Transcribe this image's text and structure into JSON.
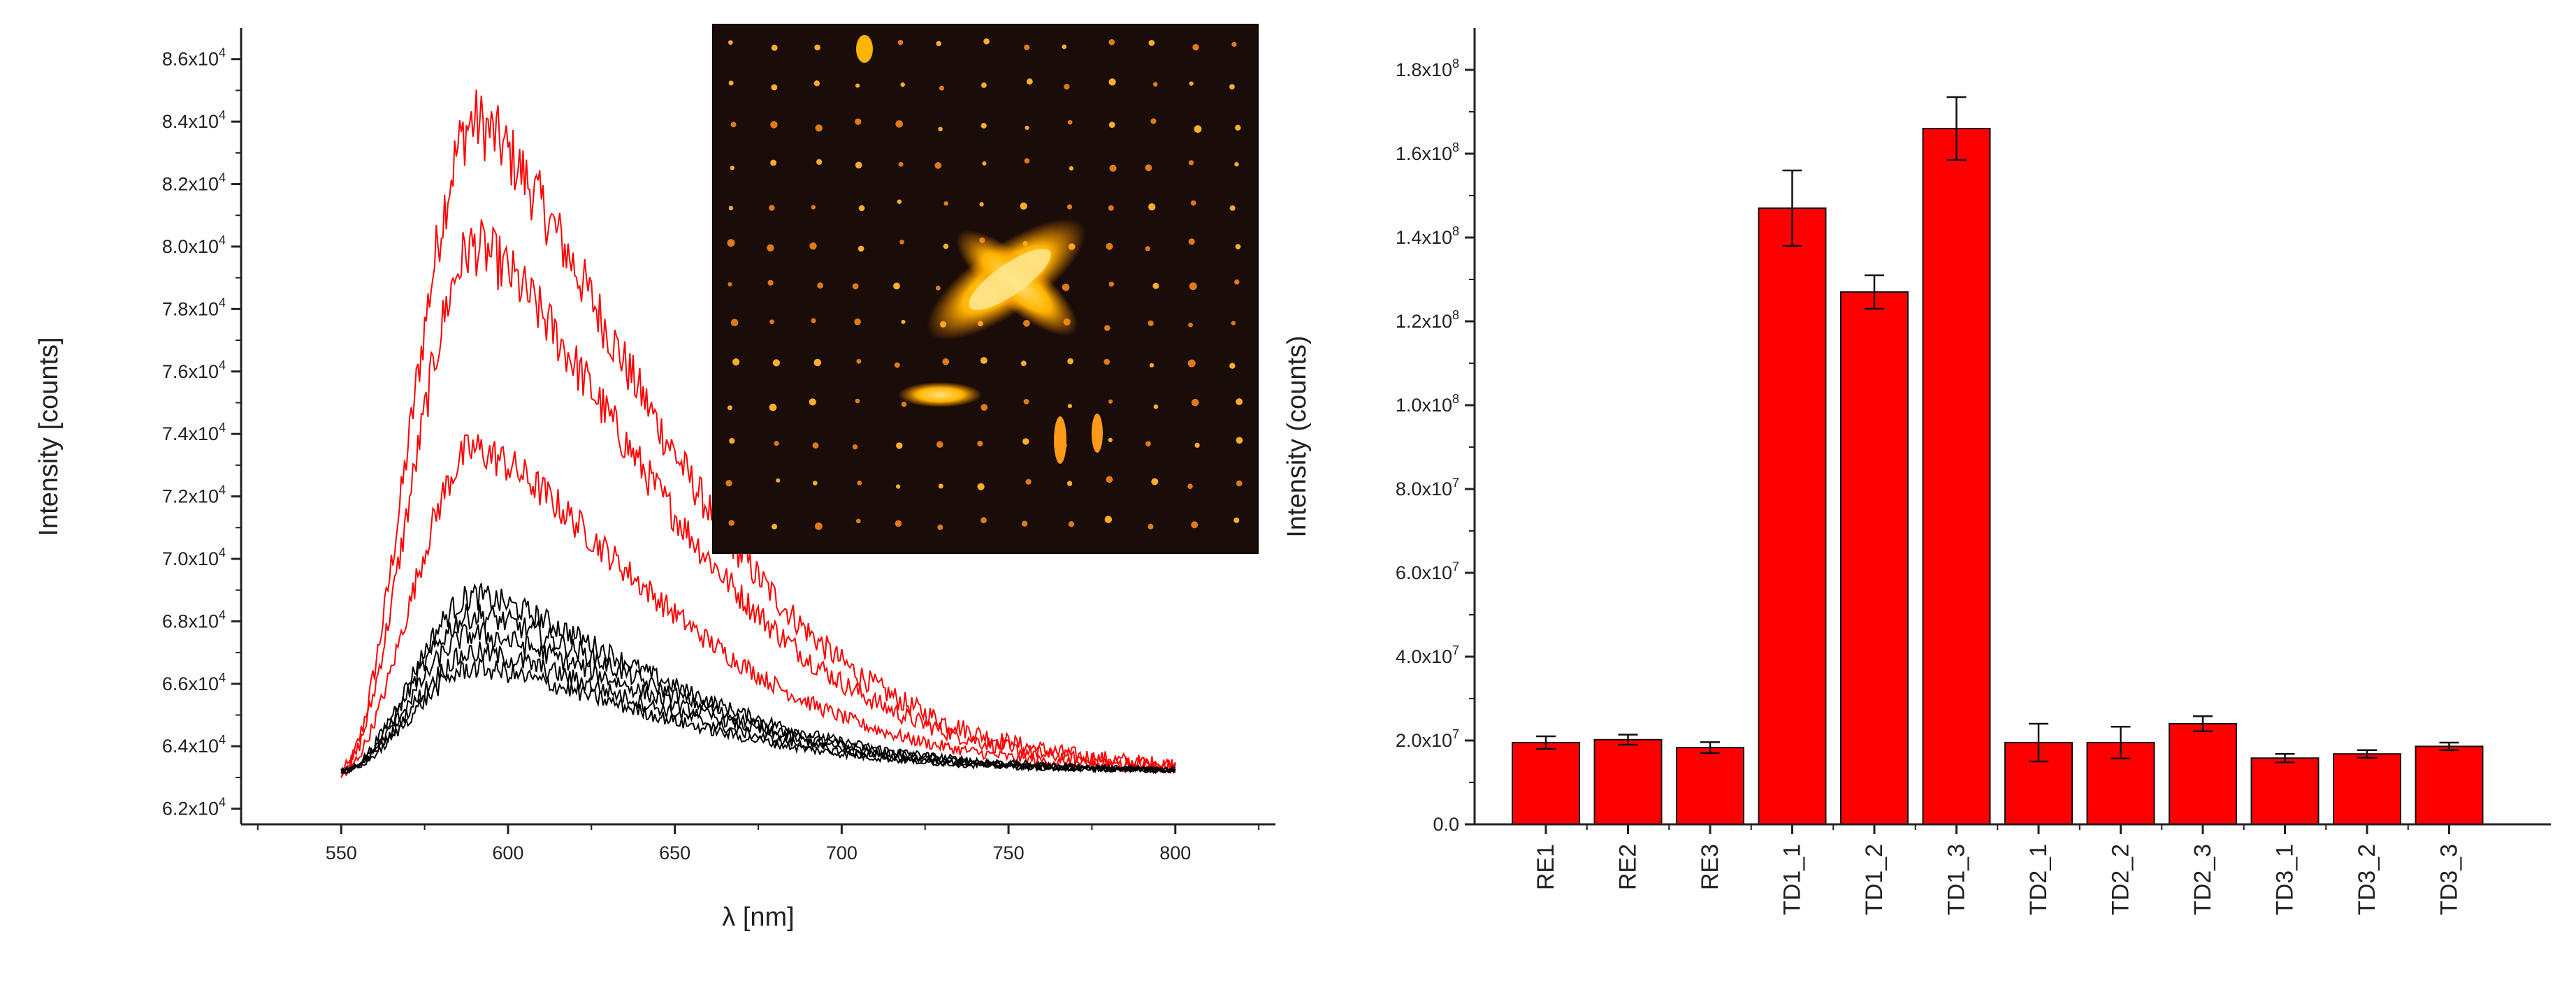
{
  "chart_data": [
    {
      "type": "line",
      "title": "",
      "xlabel": "λ [nm]",
      "ylabel": "Intensity [counts]",
      "xlim": [
        520,
        830
      ],
      "ylim": [
        61500,
        87000
      ],
      "x_ticks": [
        "550",
        "600",
        "650",
        "700",
        "750",
        "800"
      ],
      "y_ticks": [
        {
          "value": 62000,
          "mantissa": "6.2",
          "exponent": "4"
        },
        {
          "value": 64000,
          "mantissa": "6.4",
          "exponent": "4"
        },
        {
          "value": 66000,
          "mantissa": "6.6",
          "exponent": "4"
        },
        {
          "value": 68000,
          "mantissa": "6.8",
          "exponent": "4"
        },
        {
          "value": 70000,
          "mantissa": "7.0",
          "exponent": "4"
        },
        {
          "value": 72000,
          "mantissa": "7.2",
          "exponent": "4"
        },
        {
          "value": 74000,
          "mantissa": "7.4",
          "exponent": "4"
        },
        {
          "value": 76000,
          "mantissa": "7.6",
          "exponent": "4"
        },
        {
          "value": 78000,
          "mantissa": "7.8",
          "exponent": "4"
        },
        {
          "value": 80000,
          "mantissa": "8.0",
          "exponent": "4"
        },
        {
          "value": 82000,
          "mantissa": "8.2",
          "exponent": "4"
        },
        {
          "value": 84000,
          "mantissa": "8.4",
          "exponent": "4"
        },
        {
          "value": 86000,
          "mantissa": "8.6",
          "exponent": "4"
        }
      ],
      "grid": false,
      "legend": "none",
      "baseline": 63200,
      "x_range": [
        550,
        800
      ],
      "series": [
        {
          "color": "#ff0000",
          "peak_x": 590,
          "peak_y": 84000
        },
        {
          "color": "#ff0000",
          "peak_x": 590,
          "peak_y": 80000
        },
        {
          "color": "#ff0000",
          "peak_x": 590,
          "peak_y": 73500
        },
        {
          "color": "#000000",
          "peak_x": 590,
          "peak_y": 68800
        },
        {
          "color": "#000000",
          "peak_x": 590,
          "peak_y": 68200
        },
        {
          "color": "#000000",
          "peak_x": 590,
          "peak_y": 67600
        },
        {
          "color": "#000000",
          "peak_x": 590,
          "peak_y": 67000
        },
        {
          "color": "#000000",
          "peak_x": 590,
          "peak_y": 66500
        }
      ],
      "inset": "fluorescence-microscopy-image"
    },
    {
      "type": "bar",
      "title": "",
      "xlabel": "",
      "ylabel": "Intensity (counts)",
      "ylim": [
        0,
        190000000
      ],
      "categories": [
        "RE1",
        "RE2",
        "RE3",
        "TD1_1",
        "TD1_2",
        "TD1_3",
        "TD2_1",
        "TD2_2",
        "TD2_3",
        "TD3_1",
        "TD3_2",
        "TD3_3"
      ],
      "values": [
        19500000,
        20200000,
        18300000,
        147000000,
        127000000,
        166000000,
        19500000,
        19500000,
        24000000,
        15800000,
        16800000,
        18600000
      ],
      "errors": [
        1500000,
        1200000,
        1300000,
        9000000,
        4000000,
        7500000,
        4500000,
        3800000,
        1800000,
        1000000,
        900000,
        900000
      ],
      "bar_color": "#ff0000",
      "y_ticks": [
        {
          "value": 0,
          "mantissa": "0.0",
          "exponent": ""
        },
        {
          "value": 20000000,
          "mantissa": "2.0",
          "exponent": "7"
        },
        {
          "value": 40000000,
          "mantissa": "4.0",
          "exponent": "7"
        },
        {
          "value": 60000000,
          "mantissa": "6.0",
          "exponent": "7"
        },
        {
          "value": 80000000,
          "mantissa": "8.0",
          "exponent": "7"
        },
        {
          "value": 100000000,
          "mantissa": "1.0",
          "exponent": "8"
        },
        {
          "value": 120000000,
          "mantissa": "1.2",
          "exponent": "8"
        },
        {
          "value": 140000000,
          "mantissa": "1.4",
          "exponent": "8"
        },
        {
          "value": 160000000,
          "mantissa": "1.6",
          "exponent": "8"
        },
        {
          "value": 180000000,
          "mantissa": "1.8",
          "exponent": "8"
        }
      ],
      "grid": false,
      "legend": "none"
    }
  ]
}
